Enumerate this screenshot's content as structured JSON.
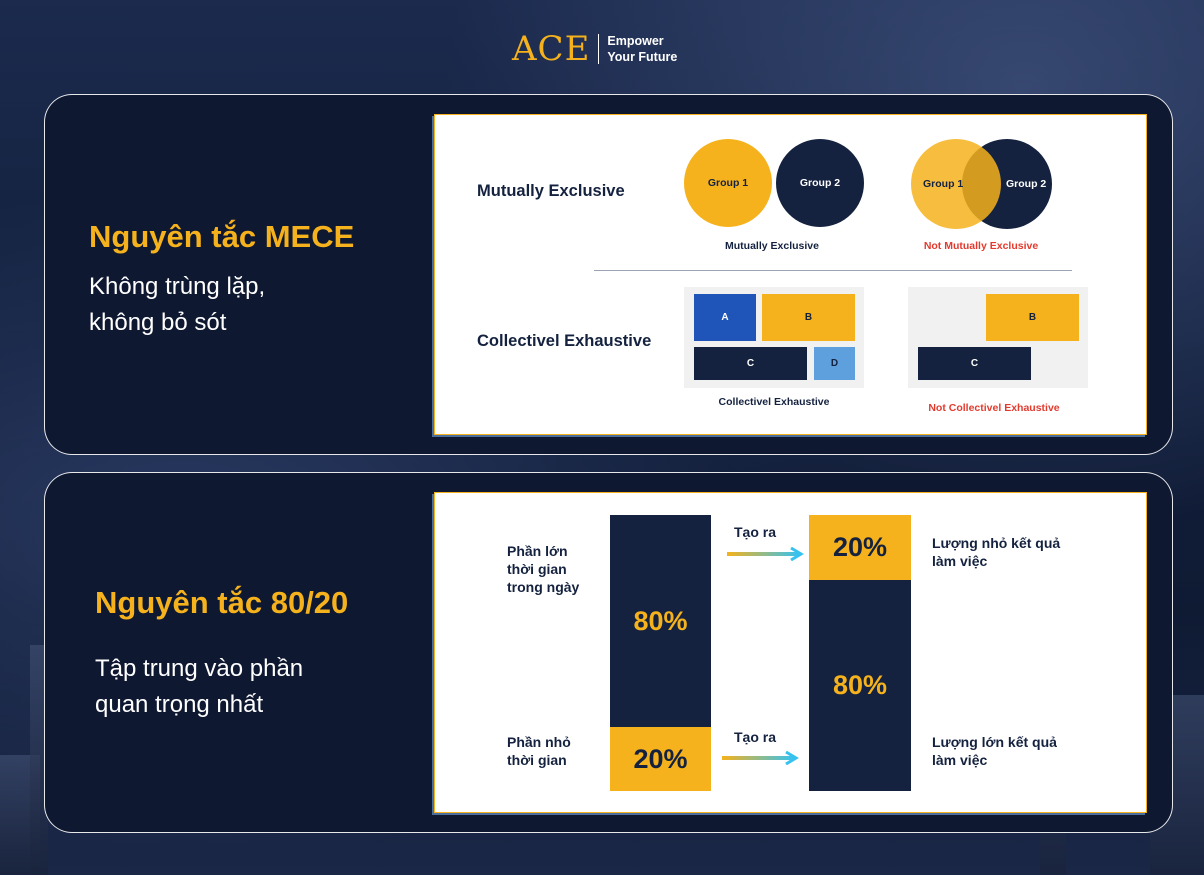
{
  "logo": {
    "mark": "ACE",
    "tagline_line1": "Empower",
    "tagline_line2": "Your Future"
  },
  "mece": {
    "title": "Nguyên tắc MECE",
    "subtitle": "Không trùng lặp,\nkhông bỏ sót",
    "row1_label": "Mutually Exclusive",
    "row2_label": "Collectivel Exhaustive",
    "group1": "Group 1",
    "group2": "Group 2",
    "caption_me": "Mutually Exclusive",
    "caption_not_me": "Not Mutually Exclusive",
    "caption_ce": "Collectivel Exhaustive",
    "caption_not_ce": "Not Collectivel Exhaustive",
    "block_a": "A",
    "block_b": "B",
    "block_c": "C",
    "block_d": "D",
    "colors": {
      "yellow": "#f5b21c",
      "navy": "#14223f",
      "blue": "#1f55b8",
      "light_blue": "#5e9fde",
      "red": "#e23b2e"
    }
  },
  "pareto": {
    "title": "Nguyên tắc 80/20",
    "subtitle": "Tập trung vào phần\nquan trọng nhất",
    "left_top_note": "Phần lớn\nthời gian\ntrong ngày",
    "left_bottom_note": "Phần nhỏ\nthời gian",
    "input_large": "80%",
    "input_small": "20%",
    "arrow_label_top": "Tạo ra",
    "arrow_label_bottom": "Tạo ra",
    "output_small": "20%",
    "output_large": "80%",
    "right_top_note": "Lượng nhỏ kết quả\nlàm việc",
    "right_bottom_note": "Lượng lớn kết quả\nlàm việc"
  }
}
